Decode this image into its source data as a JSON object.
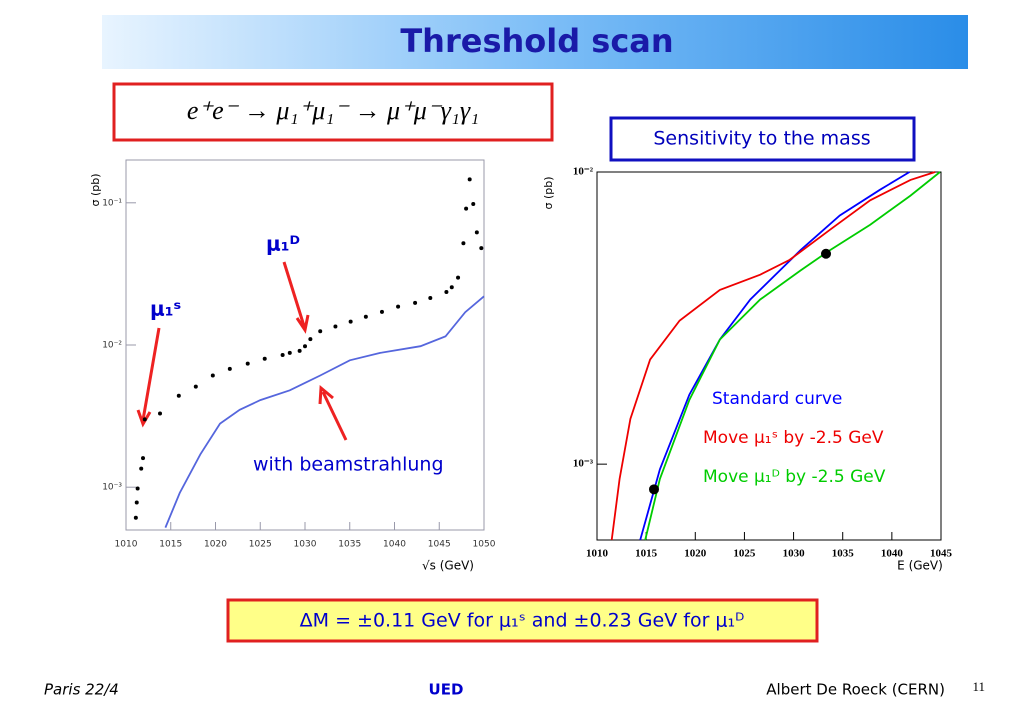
{
  "title": "Threshold scan",
  "formula": "e⁺e⁻  →  μ₁⁺μ₁⁻  →  μ⁺μ⁻γ₁γ₁",
  "note": "Sensitivity to the mass",
  "result": "ΔM = ±0.11 GeV for μ₁ˢ  and ±0.23 GeV for μ₁ᴰ",
  "footer": {
    "left": "Paris  22/4",
    "center": "UED",
    "right": "Albert De Roeck (CERN)",
    "page": "11"
  },
  "chart_data": [
    {
      "type": "line",
      "xlabel": "√s (GeV)",
      "ylabel": "σ (pb)",
      "xlim": [
        1010,
        1050
      ],
      "ylim": [
        0.0005,
        0.2
      ],
      "log_y": true,
      "xticks": [
        1010,
        1015,
        1020,
        1025,
        1030,
        1035,
        1040,
        1045,
        1050
      ],
      "yticks": [
        {
          "value": 0.001,
          "label": "10⁻³"
        },
        {
          "value": 0.01,
          "label": "10⁻²"
        },
        {
          "value": 0.1,
          "label": "10⁻¹"
        }
      ],
      "annotations": [
        {
          "text": "μ₁ᴰ",
          "color": "#0000cc"
        },
        {
          "text": "μ₁ˢ",
          "color": "#0000cc"
        },
        {
          "text": "with beamstrahlung",
          "color": "#0000cc"
        }
      ],
      "series": [
        {
          "style": "dots",
          "color": "#000000",
          "x": [
            1011.1,
            1011.2,
            1011.3,
            1011.7,
            1011.9,
            1012.1,
            1013.8,
            1015.9,
            1017.8,
            1019.7,
            1021.6,
            1023.6,
            1025.5,
            1027.5,
            1028.3,
            1029.4,
            1030.0,
            1030.6,
            1031.7,
            1033.4,
            1035.1,
            1036.8,
            1038.6,
            1040.4,
            1042.3,
            1044.0,
            1045.8,
            1046.4,
            1047.1,
            1047.7,
            1048.0,
            1048.4,
            1048.8,
            1049.2,
            1049.7
          ],
          "values": [
            0.00061,
            0.00078,
            0.00098,
            0.00135,
            0.0016,
            0.003,
            0.0033,
            0.0044,
            0.0051,
            0.0061,
            0.0068,
            0.0074,
            0.008,
            0.0085,
            0.0088,
            0.0091,
            0.0098,
            0.011,
            0.0125,
            0.0135,
            0.0146,
            0.0158,
            0.0171,
            0.0186,
            0.0198,
            0.0214,
            0.0236,
            0.0255,
            0.0298,
            0.052,
            0.091,
            0.146,
            0.098,
            0.062,
            0.048
          ]
        },
        {
          "style": "line",
          "color": "#5566dd",
          "x": [
            1014.4,
            1016.0,
            1018.3,
            1020.5,
            1022.7,
            1025.0,
            1028.3,
            1031.7,
            1035.0,
            1038.4,
            1042.9,
            1045.7,
            1047.9,
            1050.0
          ],
          "values": [
            0.00052,
            0.00091,
            0.0017,
            0.0028,
            0.0035,
            0.0041,
            0.0048,
            0.0061,
            0.0078,
            0.0088,
            0.0098,
            0.0115,
            0.017,
            0.022
          ]
        }
      ]
    },
    {
      "type": "line",
      "xlabel": "E (GeV)",
      "ylabel": "σ (pb)",
      "xlim": [
        1010,
        1045
      ],
      "ylim": [
        0.00055,
        0.01
      ],
      "log_y": true,
      "xticks": [
        1010,
        1015,
        1020,
        1025,
        1030,
        1035,
        1040,
        1045
      ],
      "yticks": [
        {
          "value": 0.001,
          "label": "10⁻³"
        },
        {
          "value": 0.01,
          "label": "10⁻²"
        }
      ],
      "series": [
        {
          "name": "Standard curve",
          "style": "line",
          "color": "#0000ff",
          "x": [
            1014.4,
            1016.4,
            1019.4,
            1022.5,
            1025.6,
            1028.6,
            1030.7,
            1034.7,
            1038.8,
            1041.8
          ],
          "values": [
            0.00055,
            0.00096,
            0.00173,
            0.00267,
            0.00366,
            0.0046,
            0.0054,
            0.0071,
            0.0087,
            0.01
          ]
        },
        {
          "name": "Move μ₁ˢ by -2.5 GeV",
          "style": "line",
          "color": "#ee0000",
          "x": [
            1011.5,
            1012.3,
            1013.4,
            1015.4,
            1018.4,
            1022.5,
            1026.6,
            1029.6,
            1033.7,
            1037.8,
            1041.9,
            1044.4
          ],
          "values": [
            0.00055,
            0.00089,
            0.00143,
            0.00228,
            0.0031,
            0.00395,
            0.00445,
            0.005,
            0.00634,
            0.008,
            0.0094,
            0.01
          ]
        },
        {
          "name": "Move μ₁ᴰ by -2.5 GeV",
          "style": "line",
          "color": "#00cc00",
          "x": [
            1014.9,
            1016.4,
            1019.4,
            1022.5,
            1026.6,
            1030.7,
            1033.7,
            1037.8,
            1041.9,
            1044.9
          ],
          "values": [
            0.00055,
            0.00089,
            0.00166,
            0.00267,
            0.00366,
            0.0046,
            0.0054,
            0.0066,
            0.0083,
            0.01
          ]
        },
        {
          "style": "bigdots",
          "color": "#000000",
          "x": [
            1015.8,
            1033.3
          ],
          "values": [
            0.00082,
            0.00525
          ]
        }
      ]
    }
  ]
}
